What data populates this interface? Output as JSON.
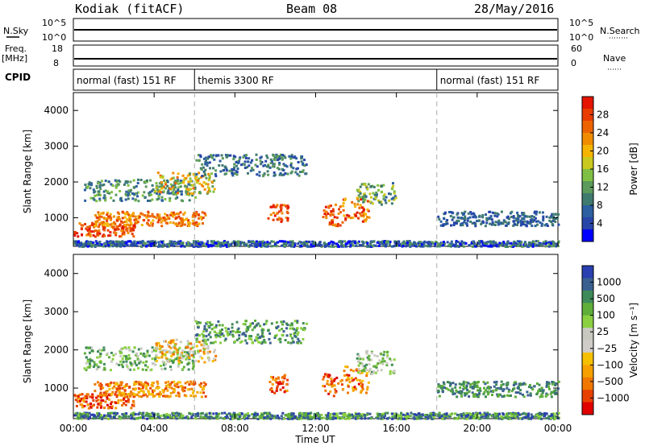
{
  "header": {
    "station": "Kodiak (fitACF)",
    "beam": "Beam 08",
    "date": "28/May/2016"
  },
  "strips": {
    "nsky_label": "N.Sky",
    "nsky_ticks": [
      "10^5",
      "10^0"
    ],
    "nsearch_label": "N.Search",
    "nsearch_ticks": [
      "10^5",
      "10^0"
    ],
    "freq_label_1": "Freq.",
    "freq_label_2": "[MHz]",
    "freq_ticks": [
      "18",
      "8"
    ],
    "nave_label": "Nave",
    "nave_ticks": [
      "60",
      "0"
    ],
    "cpid_label": "CPID"
  },
  "cpid": {
    "segments": [
      {
        "label": "normal (fast) 151 RF",
        "start_hour": 0,
        "end_hour": 6
      },
      {
        "label": "themis 3300 RF",
        "start_hour": 6,
        "end_hour": 18
      },
      {
        "label": "normal (fast) 151 RF",
        "start_hour": 18,
        "end_hour": 24
      }
    ]
  },
  "colors": {
    "power_scale": [
      "#0000ff",
      "#2746a8",
      "#2b5fa0",
      "#3f7a6e",
      "#5b9a5b",
      "#7fc044",
      "#c8c81e",
      "#f4b400",
      "#f08c00",
      "#ec6400",
      "#e83c00",
      "#e41400"
    ],
    "velocity_scale": [
      "#2a3fb0",
      "#3a6090",
      "#3f8a5a",
      "#5fae3a",
      "#8ad040",
      "#c8c8c0",
      "#d0cdc8",
      "#f5c000",
      "#f5a000",
      "#f07800",
      "#e84000",
      "#e00000"
    ]
  },
  "chart_data": [
    {
      "type": "heatmap",
      "title": "Power",
      "xlabel": "Time UT",
      "ylabel": "Slant Range [km]",
      "x_ticks": [
        "00:00",
        "04:00",
        "08:00",
        "12:00",
        "16:00",
        "20:00",
        "00:00"
      ],
      "xlim": [
        0,
        24
      ],
      "y_ticks": [
        "1000",
        "2000",
        "3000",
        "4000"
      ],
      "ylim": [
        200,
        4500
      ],
      "colorbar_label": "Power [dB]",
      "colorbar_ticks": [
        "4",
        "8",
        "12",
        "16",
        "20",
        "24",
        "28"
      ],
      "clim": [
        0,
        30
      ]
    },
    {
      "type": "heatmap",
      "title": "Velocity",
      "xlabel": "Time UT",
      "ylabel": "Slant Range [km]",
      "x_ticks": [
        "00:00",
        "04:00",
        "08:00",
        "12:00",
        "16:00",
        "20:00",
        "00:00"
      ],
      "xlim": [
        0,
        24
      ],
      "y_ticks": [
        "1000",
        "2000",
        "3000",
        "4000"
      ],
      "ylim": [
        200,
        4500
      ],
      "colorbar_label": "Velocity [m s⁻¹]",
      "colorbar_ticks": [
        "1000",
        "500",
        "100",
        "25",
        "−25",
        "−100",
        "−500",
        "−1000"
      ]
    }
  ]
}
